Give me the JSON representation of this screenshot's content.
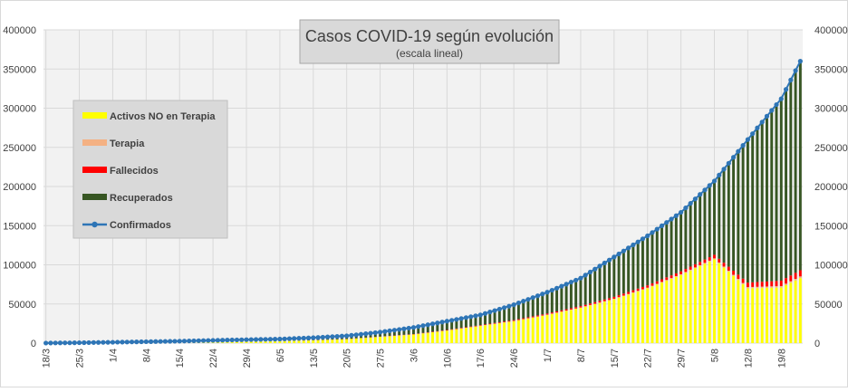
{
  "chart_data": {
    "type": "bar",
    "title": "Casos COVID-19 según evolución",
    "subtitle": "(escala lineal)",
    "ylim": [
      0,
      400000
    ],
    "y_ticks": [
      "0",
      "50000",
      "100000",
      "150000",
      "200000",
      "250000",
      "300000",
      "350000",
      "400000"
    ],
    "x_start": "2020-03-18",
    "num_days": 159,
    "x_tick_labels": [
      "18/3",
      "25/3",
      "1/4",
      "8/4",
      "15/4",
      "22/4",
      "29/4",
      "6/5",
      "13/5",
      "20/5",
      "27/5",
      "3/6",
      "10/6",
      "17/6",
      "24/6",
      "1/7",
      "8/7",
      "15/7",
      "22/7",
      "29/7",
      "5/8",
      "12/8",
      "19/8"
    ],
    "grid": true,
    "legend_position": "left",
    "legend": [
      {
        "name": "Activos NO en Terapia",
        "color": "#FFFF00",
        "kind": "bar"
      },
      {
        "name": "Terapia",
        "color": "#F4B183",
        "kind": "bar"
      },
      {
        "name": "Fallecidos",
        "color": "#FF0000",
        "kind": "bar"
      },
      {
        "name": "Recuperados",
        "color": "#375623",
        "kind": "bar"
      },
      {
        "name": "Confirmados",
        "color": "#2E75B6",
        "kind": "line"
      }
    ],
    "series": [
      {
        "name": "Confirmados",
        "values_at_weekly_ticks": [
          100,
          500,
          1100,
          1800,
          2500,
          3500,
          4400,
          5200,
          6900,
          9300,
          14000,
          20000,
          28000,
          36000,
          49000,
          65000,
          83000,
          110000,
          137000,
          167000,
          207000,
          260000,
          312000
        ],
        "last_value": 360000
      },
      {
        "name": "Activos NO en Terapia",
        "values_at_weekly_ticks": [
          100,
          450,
          900,
          1300,
          1500,
          1800,
          2000,
          2500,
          3500,
          5000,
          8000,
          11000,
          16000,
          22000,
          28000,
          36000,
          45000,
          56000,
          70000,
          87000,
          107000,
          70000,
          71000
        ],
        "last_value": 83000
      }
    ]
  }
}
